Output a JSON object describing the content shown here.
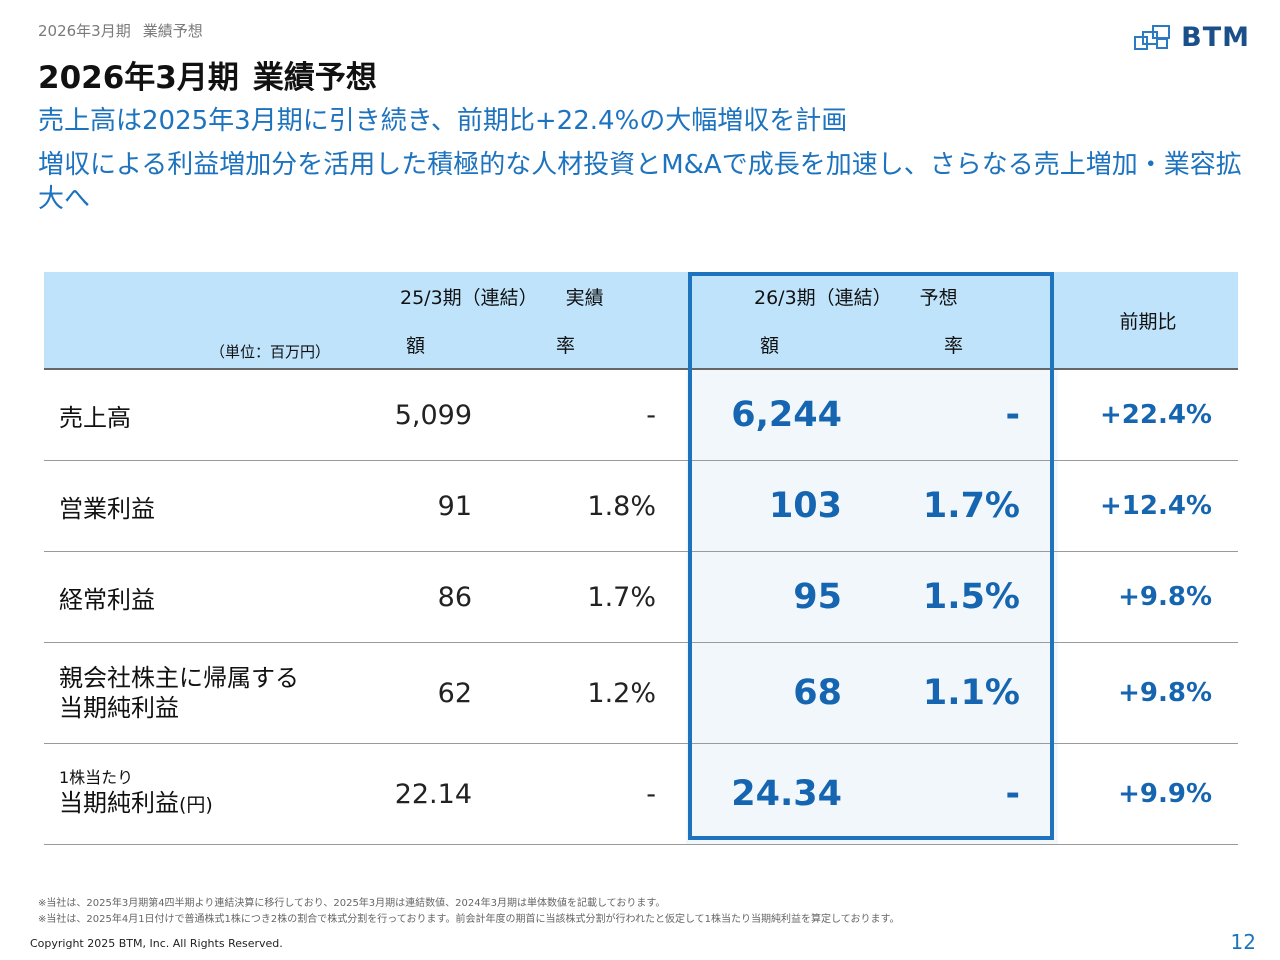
{
  "breadcrumb": {
    "period": "2026年3月期",
    "topic": "業績予想"
  },
  "logo": {
    "text": "BTM",
    "color": "#1a4f8a"
  },
  "title": {
    "period": "2026年3月期",
    "topic": "業績予想"
  },
  "headlines": [
    "売上高は2025年3月期に引き続き、前期比+22.4%の大幅増収を計画",
    "増収による利益増加分を活用した積極的な人材投資とM&Aで成長を加速し、さらなる売上増加・業容拡大へ"
  ],
  "table": {
    "unit_note": "（単位：百万円）",
    "prev_header": {
      "period": "25/3期（連結）",
      "type": "実績"
    },
    "fc_header": {
      "period": "26/3期（連結）",
      "type": "予想"
    },
    "yoy_header": "前期比",
    "col_amount": "額",
    "col_rate": "率",
    "rows": [
      {
        "label": "売上高",
        "prev_amount": "5,099",
        "prev_rate": "-",
        "fc_amount": "6,244",
        "fc_rate": "-",
        "yoy": "+22.4%"
      },
      {
        "label": "営業利益",
        "prev_amount": "91",
        "prev_rate": "1.8%",
        "fc_amount": "103",
        "fc_rate": "1.7%",
        "yoy": "+12.4%"
      },
      {
        "label": "経常利益",
        "prev_amount": "86",
        "prev_rate": "1.7%",
        "fc_amount": "95",
        "fc_rate": "1.5%",
        "yoy": "+9.8%"
      },
      {
        "label_line1": "親会社株主に帰属する",
        "label_line2": "当期純利益",
        "prev_amount": "62",
        "prev_rate": "1.2%",
        "fc_amount": "68",
        "fc_rate": "1.1%",
        "yoy": "+9.8%"
      },
      {
        "label_small": "1株当たり",
        "label_big": "当期純利益",
        "label_paren": "(円)",
        "prev_amount": "22.14",
        "prev_rate": "-",
        "fc_amount": "24.34",
        "fc_rate": "-",
        "yoy": "+9.9%"
      }
    ]
  },
  "footnotes": [
    "※当社は、2025年3月期第4四半期より連結決算に移行しており、2025年3月期は連結数値、2024年3月期は単体数値を記載しております。",
    "※当社は、2025年4月1日付けで普通株式1株につき2株の割合で株式分割を行っております。前会計年度の期首に当該株式分割が行われたと仮定して1株当たり当期純利益を算定しております。"
  ],
  "copyright": "Copyright 2025 BTM, Inc. All Rights Reserved.",
  "page_number": "12",
  "colors": {
    "accent": "#1e73be",
    "header_bg": "#bfe3fb",
    "forecast_bg": "#f2f7fc"
  }
}
